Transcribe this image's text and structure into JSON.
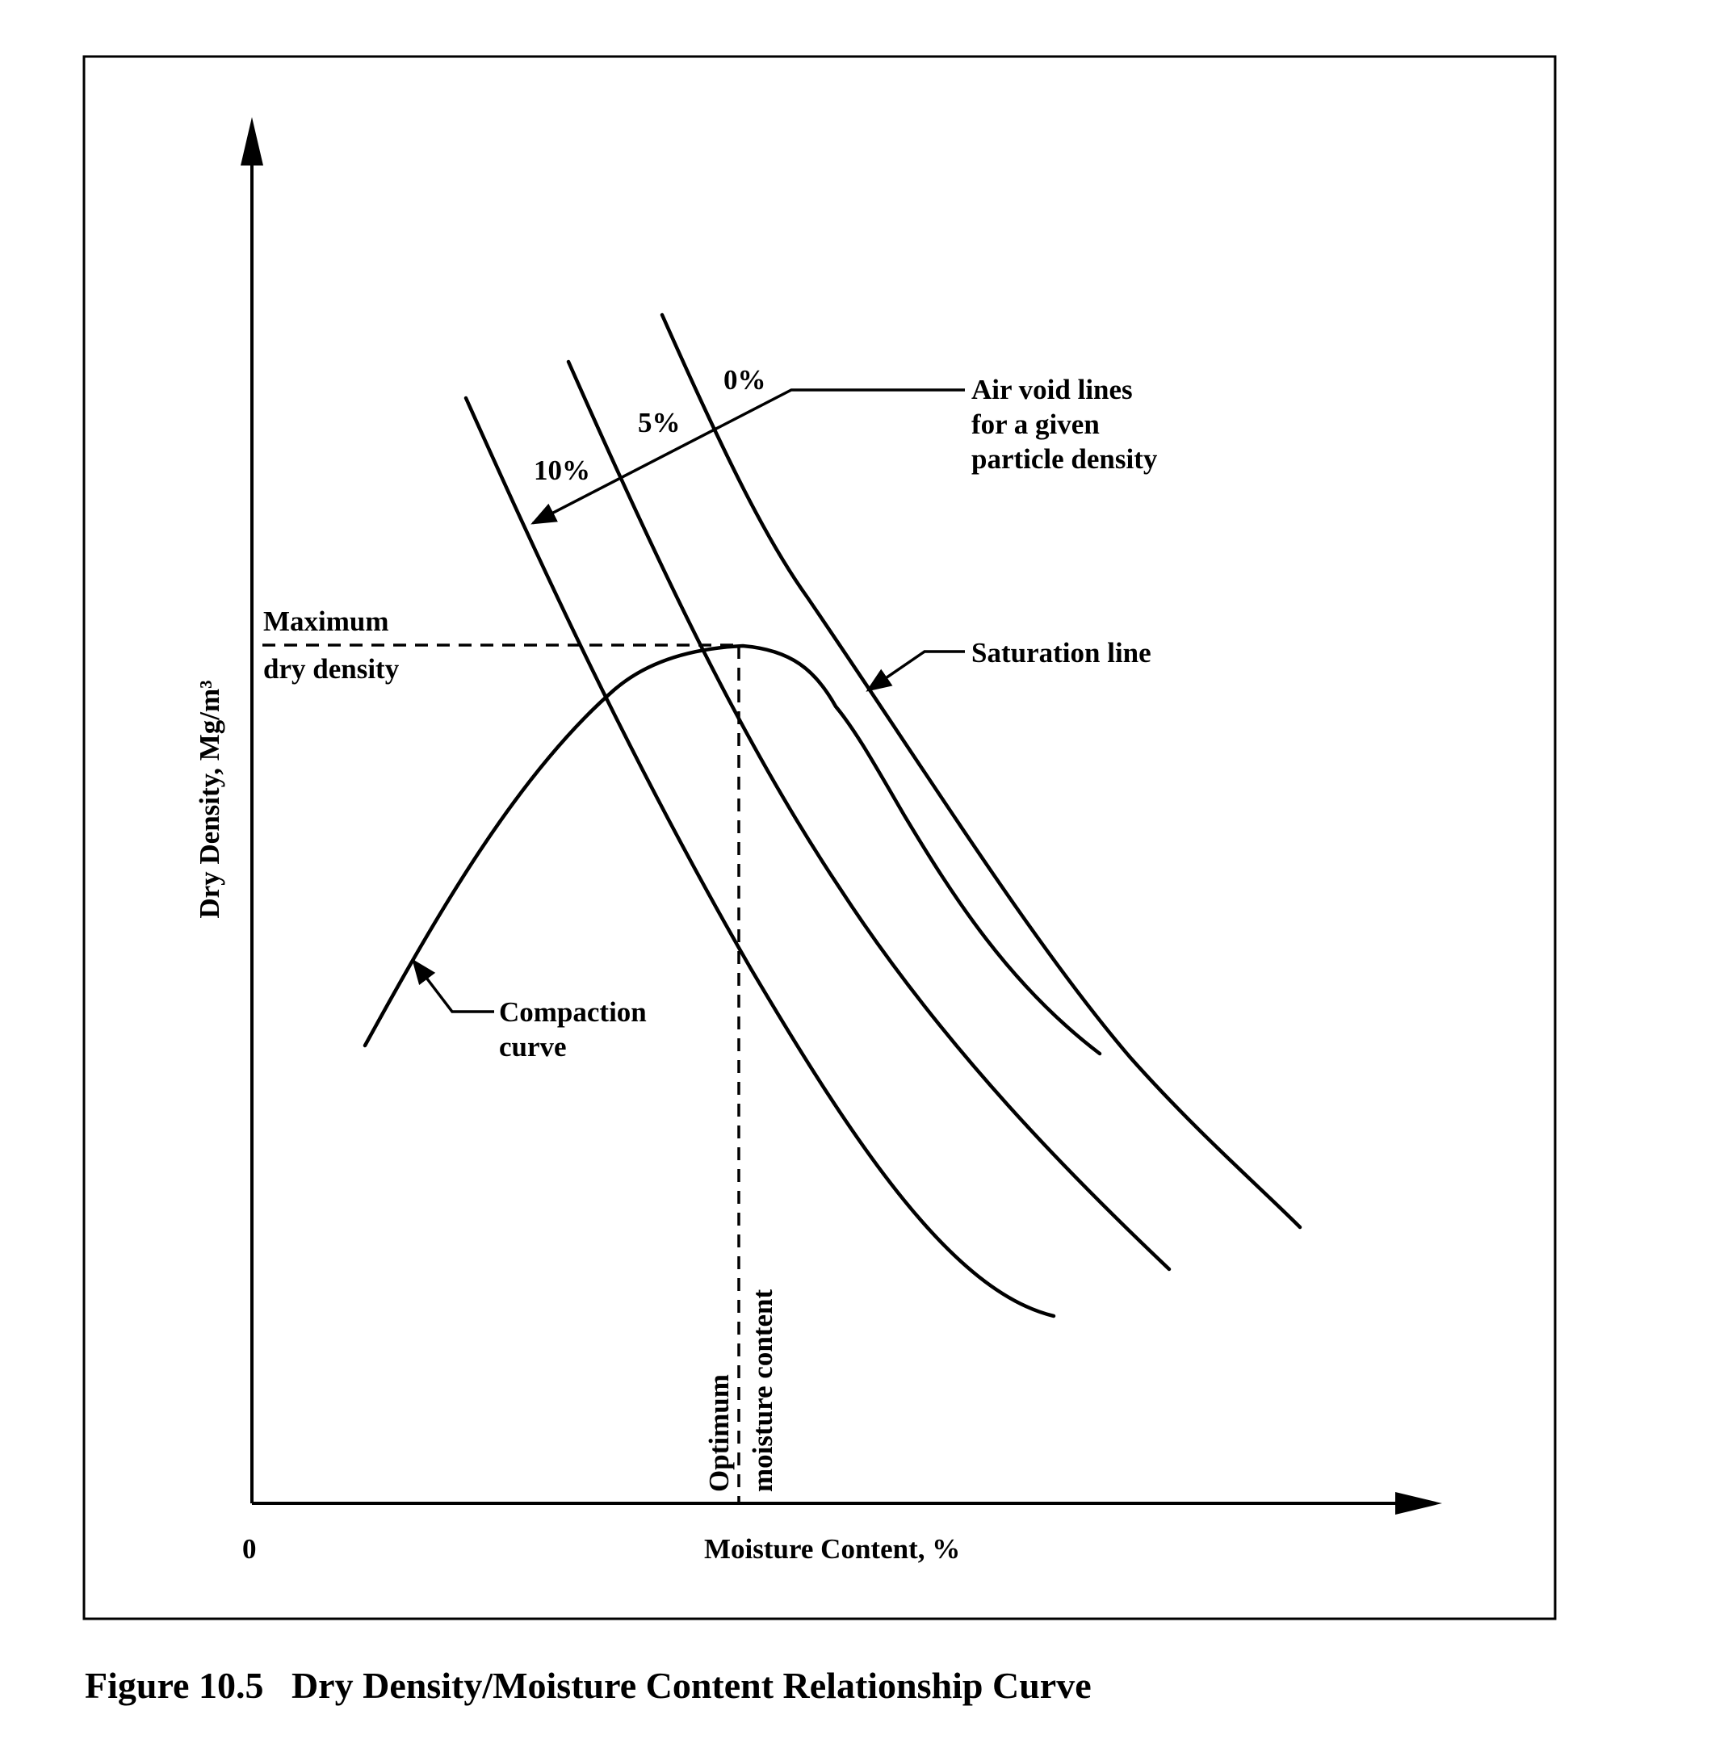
{
  "figure": {
    "caption": "Figure 10.5   Dry Density/Moisture Content Relationship Curve",
    "y_axis_label": "Dry Density, Mg/m³",
    "x_axis_label": "Moisture Content, %",
    "origin_label": "0",
    "air_void_labels": [
      "0%",
      "5%",
      "10%"
    ],
    "air_void_note": [
      "Air void lines",
      "for a given",
      "particle density"
    ],
    "saturation_label": "Saturation line",
    "max_density_label": [
      "Maximum",
      "dry density"
    ],
    "optimum_label": [
      "Optimum",
      "moisture content"
    ],
    "compaction_label": [
      "Compaction",
      "curve"
    ]
  }
}
